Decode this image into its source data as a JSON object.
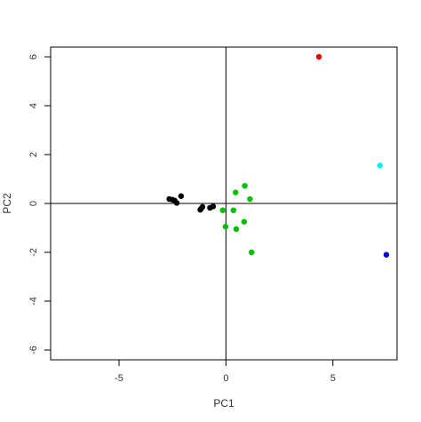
{
  "chart_data": {
    "type": "scatter",
    "title": "",
    "xlabel": "PC1",
    "ylabel": "PC2",
    "xlim": [
      -8.2,
      8.0
    ],
    "ylim": [
      -6.4,
      6.4
    ],
    "xticks": [
      -5,
      0,
      5
    ],
    "yticks": [
      -6,
      -4,
      -2,
      0,
      2,
      4,
      6
    ],
    "xtick_labels": [
      "-5",
      "0",
      "5"
    ],
    "ytick_labels": [
      "-6",
      "-4",
      "-2",
      "0",
      "2",
      "4",
      "6"
    ],
    "reference_lines": {
      "x": 0,
      "y": 0
    },
    "grid": false,
    "legend": "none",
    "points": [
      {
        "x": -2.65,
        "y": 0.18,
        "color": "#000000"
      },
      {
        "x": -2.5,
        "y": 0.15,
        "color": "#000000"
      },
      {
        "x": -2.4,
        "y": 0.12,
        "color": "#000000"
      },
      {
        "x": -2.3,
        "y": 0.02,
        "color": "#000000"
      },
      {
        "x": -2.1,
        "y": 0.3,
        "color": "#000000"
      },
      {
        "x": -1.2,
        "y": -0.26,
        "color": "#000000"
      },
      {
        "x": -1.15,
        "y": -0.2,
        "color": "#000000"
      },
      {
        "x": -1.1,
        "y": -0.14,
        "color": "#000000"
      },
      {
        "x": -0.75,
        "y": -0.18,
        "color": "#000000"
      },
      {
        "x": -0.6,
        "y": -0.12,
        "color": "#000000"
      },
      {
        "x": -0.15,
        "y": -0.28,
        "color": "#00c000"
      },
      {
        "x": -0.02,
        "y": -0.95,
        "color": "#00c000"
      },
      {
        "x": 0.35,
        "y": -0.28,
        "color": "#00c000"
      },
      {
        "x": 0.45,
        "y": 0.45,
        "color": "#00c000"
      },
      {
        "x": 0.48,
        "y": -1.05,
        "color": "#00c000"
      },
      {
        "x": 0.85,
        "y": -0.75,
        "color": "#00c000"
      },
      {
        "x": 0.88,
        "y": 0.72,
        "color": "#00c000"
      },
      {
        "x": 1.12,
        "y": 0.18,
        "color": "#00c000"
      },
      {
        "x": 1.2,
        "y": -2.0,
        "color": "#00c000"
      },
      {
        "x": 4.35,
        "y": 6.0,
        "color": "#dd0000"
      },
      {
        "x": 7.2,
        "y": 1.55,
        "color": "#00eeee"
      },
      {
        "x": 7.5,
        "y": -2.1,
        "color": "#0000dd"
      }
    ]
  }
}
